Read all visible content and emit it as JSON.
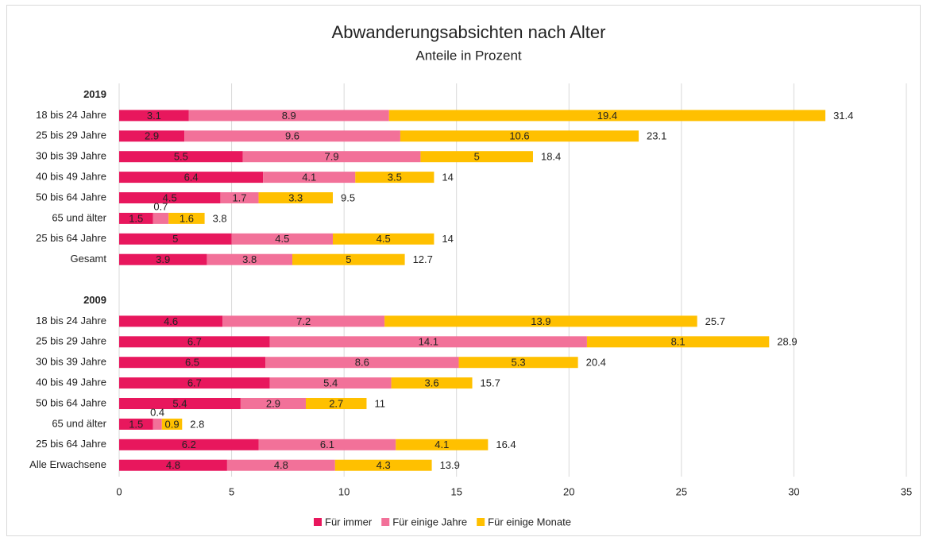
{
  "chart_data": {
    "type": "stacked-barh",
    "title": "Abwanderungsabsichten nach Alter",
    "subtitle": "Anteile in Prozent",
    "categories": [
      "2019",
      "18 bis 24 Jahre",
      "25 bis 29 Jahre",
      "30 bis 39 Jahre",
      "40 bis 49 Jahre",
      "50 bis 64 Jahre",
      "65 und älter",
      "25 bis 64 Jahre",
      "Gesamt",
      null,
      "2009",
      "18 bis 24 Jahre",
      "25 bis 29 Jahre",
      "30 bis 39 Jahre",
      "40 bis 49 Jahre",
      "50 bis 64 Jahre",
      "65 und älter",
      "25 bis 64 Jahre",
      "Alle Erwachsene"
    ],
    "series": [
      {
        "name": "Für immer",
        "color": "#e8175d",
        "values": [
          null,
          3.1,
          2.9,
          5.5,
          6.4,
          4.5,
          1.5,
          5,
          3.9,
          null,
          null,
          4.6,
          6.7,
          6.5,
          6.7,
          5.4,
          1.5,
          6.2,
          4.8
        ]
      },
      {
        "name": "Für einige Jahre",
        "color": "#f27199",
        "values": [
          null,
          8.9,
          9.6,
          7.9,
          4.1,
          1.7,
          0.7,
          4.5,
          3.8,
          null,
          null,
          7.2,
          14.1,
          8.6,
          5.4,
          2.9,
          0.4,
          6.1,
          4.8
        ]
      },
      {
        "name": "Für einige Monate",
        "color": "#ffc000",
        "values": [
          null,
          19.4,
          10.6,
          5,
          3.5,
          3.3,
          1.6,
          4.5,
          5,
          null,
          null,
          13.9,
          8.1,
          5.3,
          3.6,
          2.7,
          0.9,
          4.1,
          4.3
        ]
      }
    ],
    "totals": [
      null,
      31.4,
      23.1,
      18.4,
      14,
      9.5,
      3.8,
      14,
      12.7,
      null,
      null,
      25.7,
      28.9,
      20.4,
      15.7,
      11,
      2.8,
      16.4,
      13.9
    ],
    "xlim": [
      0,
      35
    ],
    "xticks": [
      0,
      5,
      10,
      15,
      20,
      25,
      30,
      35
    ],
    "grid": true,
    "legend": "bottom"
  }
}
